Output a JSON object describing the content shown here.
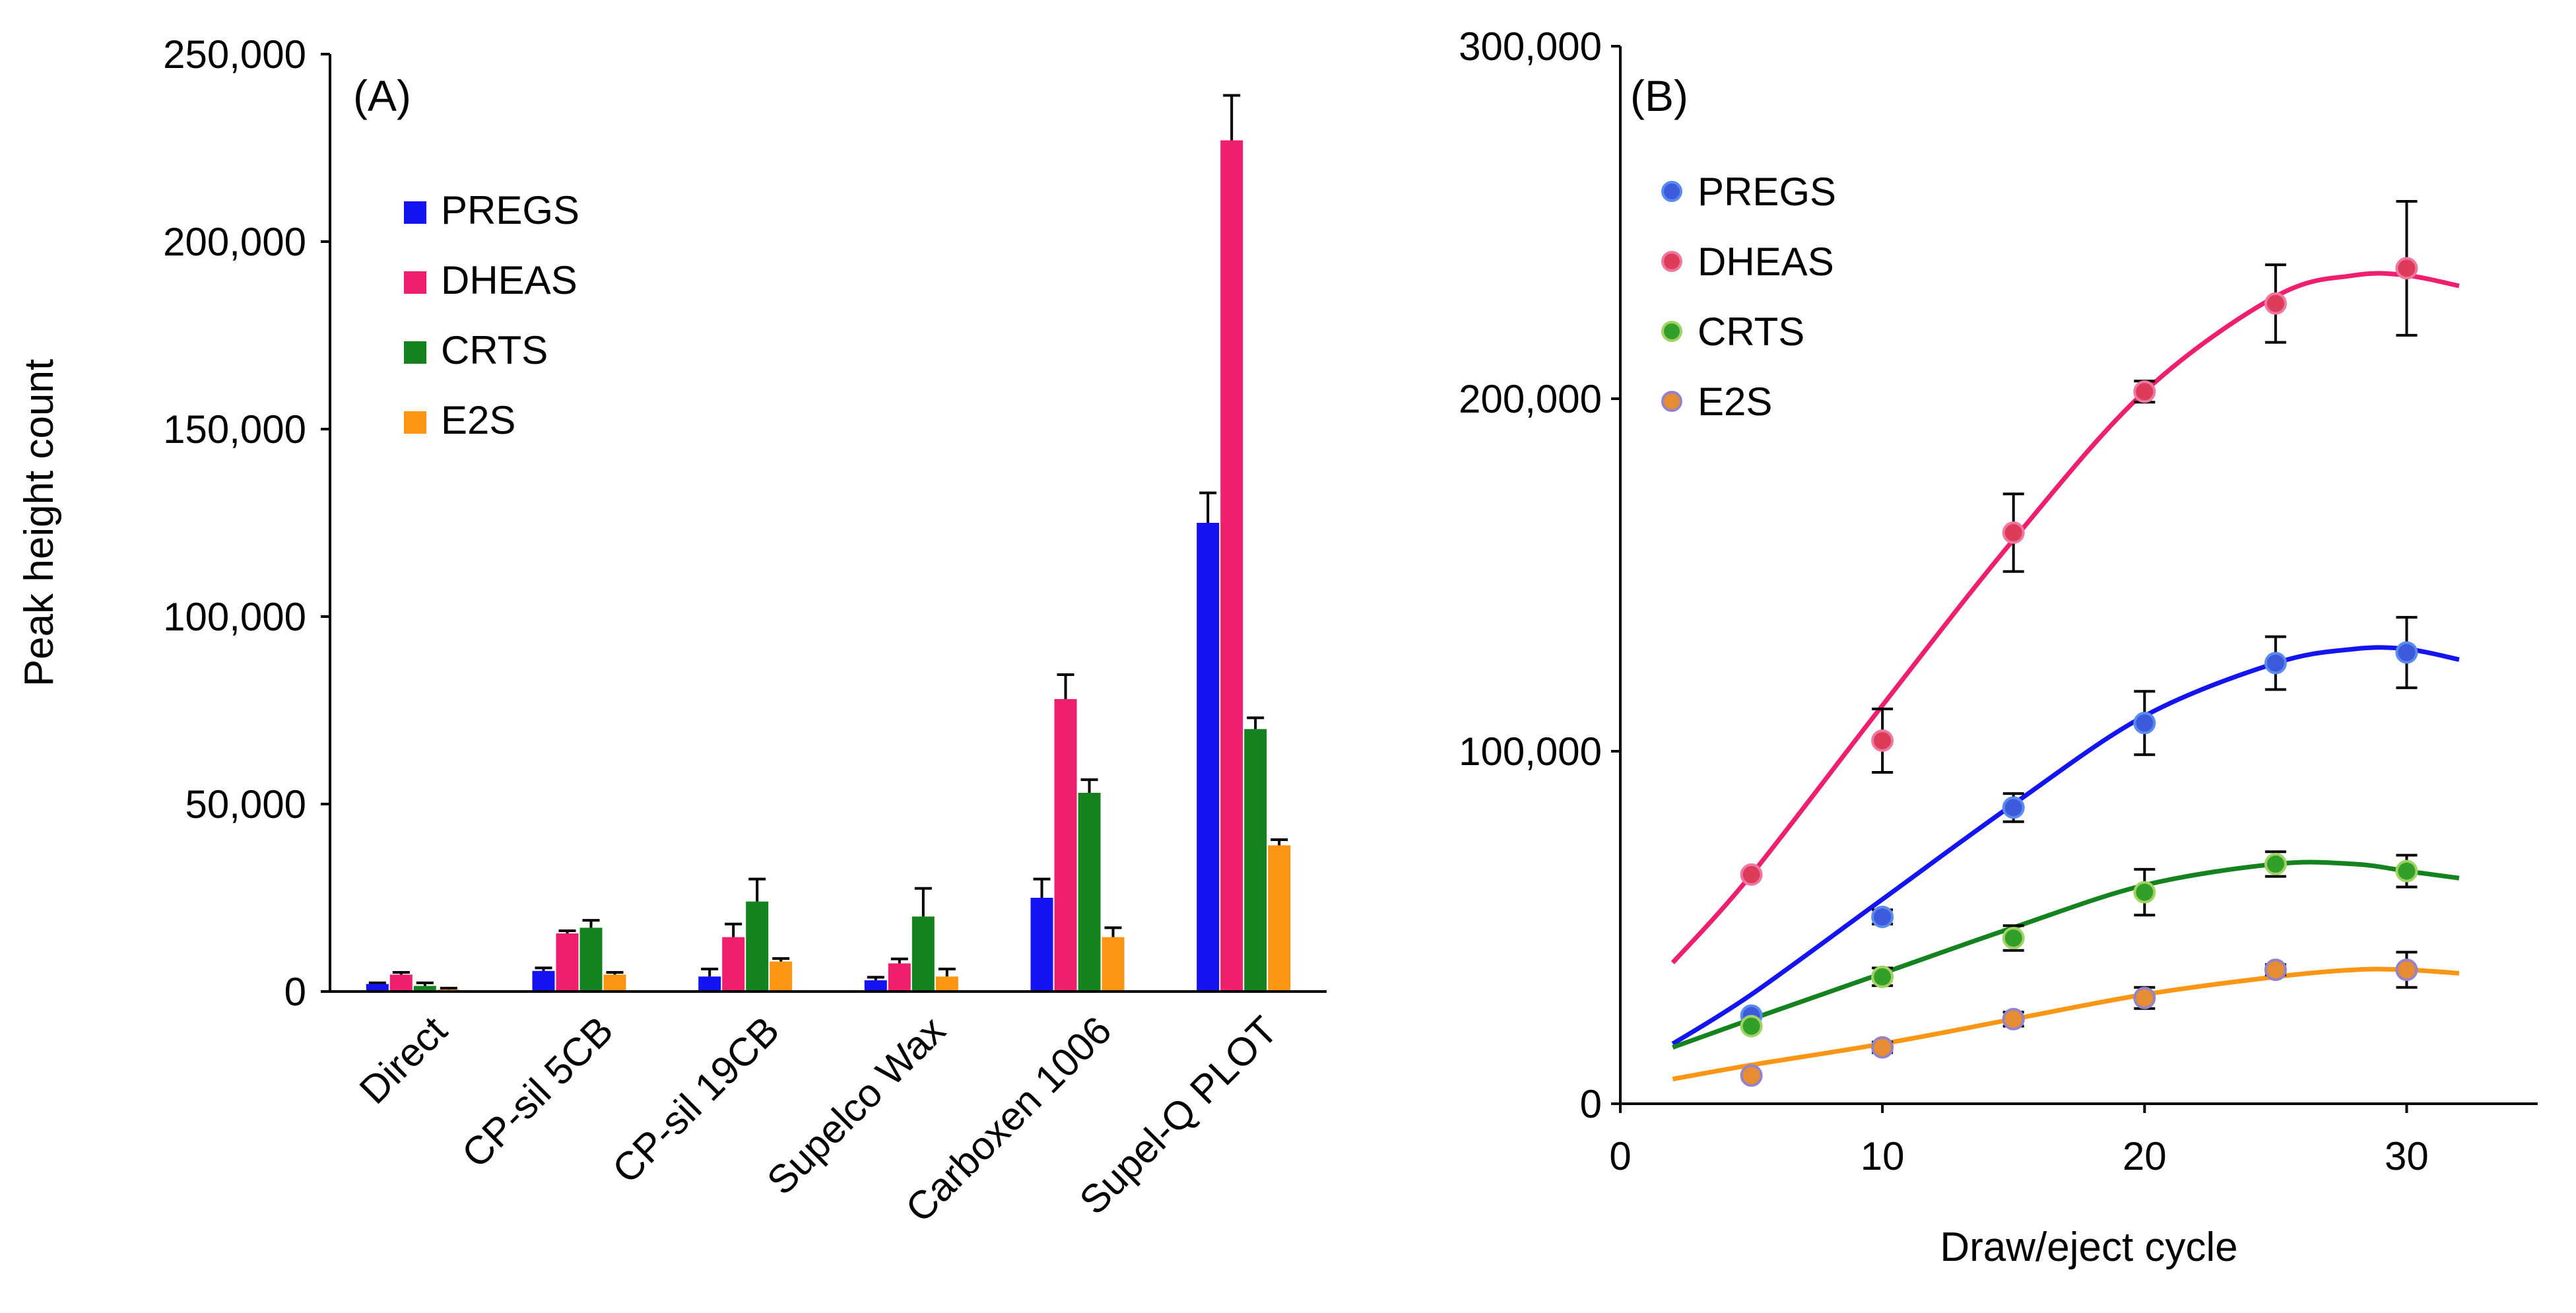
{
  "chart_data": [
    {
      "panel": "A",
      "type": "bar",
      "panel_label": "(A)",
      "title": "",
      "xlabel": "",
      "ylabel": "Peak height count",
      "ylim": [
        0,
        250000
      ],
      "yticks": [
        0,
        50000,
        100000,
        150000,
        200000,
        250000
      ],
      "ytick_labels": [
        "0",
        "50,000",
        "100,000",
        "150,000",
        "200,000",
        "250,000"
      ],
      "categories": [
        "Direct",
        "CP-sil 5CB",
        "CP-sil 19CB",
        "Supelco Wax",
        "Carboxen 1006",
        "Supel-Q PLOT"
      ],
      "legend_position": "top-left",
      "series": [
        {
          "name": "PREGS",
          "color": "#1414f0",
          "values": [
            2000,
            5500,
            4000,
            3000,
            25000,
            125000
          ],
          "errors": [
            300,
            800,
            2000,
            800,
            5000,
            8000
          ]
        },
        {
          "name": "DHEAS",
          "color": "#f01e6e",
          "values": [
            4500,
            15500,
            14500,
            7500,
            78000,
            227000
          ],
          "errors": [
            600,
            700,
            3500,
            1200,
            6500,
            12000
          ]
        },
        {
          "name": "CRTS",
          "color": "#14821e",
          "values": [
            1500,
            17000,
            24000,
            20000,
            53000,
            70000
          ],
          "errors": [
            800,
            2000,
            6000,
            7500,
            3500,
            3000
          ]
        },
        {
          "name": "E2S",
          "color": "#fa9614",
          "values": [
            500,
            4500,
            8000,
            4000,
            14500,
            39000
          ],
          "errors": [
            400,
            600,
            800,
            2000,
            2500,
            1500
          ]
        }
      ]
    },
    {
      "panel": "B",
      "type": "scatter",
      "panel_label": "(B)",
      "title": "",
      "xlabel": "Draw/eject cycle",
      "ylabel": "",
      "xlim": [
        0,
        35
      ],
      "ylim": [
        0,
        300000
      ],
      "xticks": [
        0,
        10,
        20,
        30
      ],
      "xtick_labels": [
        "0",
        "10",
        "20",
        "30"
      ],
      "yticks": [
        0,
        100000,
        200000,
        300000
      ],
      "ytick_labels": [
        "0",
        "100,000",
        "200,000",
        "300,000"
      ],
      "x": [
        5,
        10,
        15,
        20,
        25,
        30
      ],
      "legend_position": "top-left",
      "series": [
        {
          "name": "PREGS",
          "color": "#1414f0",
          "marker_fill": "#3c5adc",
          "marker_edge": "#5a8cf0",
          "values": [
            25000,
            53000,
            84000,
            108000,
            125000,
            128000
          ],
          "errors": [
            0,
            2000,
            4000,
            9000,
            7500,
            10000
          ],
          "fit_x": [
            2,
            5,
            10,
            15,
            20,
            25,
            28,
            30,
            32
          ],
          "fit_y": [
            17000,
            31000,
            58000,
            85000,
            110000,
            125000,
            129000,
            129000,
            126000
          ]
        },
        {
          "name": "DHEAS",
          "color": "#f01e6e",
          "marker_fill": "#dc3c5a",
          "marker_edge": "#f078a0",
          "values": [
            65000,
            103000,
            162000,
            202000,
            227000,
            237000
          ],
          "errors": [
            0,
            9000,
            11000,
            3000,
            11000,
            19000
          ],
          "fit_x": [
            2,
            5,
            10,
            15,
            20,
            25,
            28,
            30,
            32
          ],
          "fit_y": [
            40000,
            65000,
            113000,
            160000,
            202000,
            229000,
            235000,
            235000,
            232000
          ]
        },
        {
          "name": "CRTS",
          "color": "#14821e",
          "marker_fill": "#32a028",
          "marker_edge": "#a0d264",
          "values": [
            22000,
            36000,
            47000,
            60000,
            68000,
            66000
          ],
          "errors": [
            0,
            2500,
            3500,
            6500,
            3500,
            4500
          ],
          "fit_x": [
            2,
            5,
            10,
            15,
            20,
            25,
            28,
            30,
            32
          ],
          "fit_y": [
            16000,
            24000,
            37000,
            50000,
            62000,
            68000,
            68000,
            66000,
            64000
          ]
        },
        {
          "name": "E2S",
          "color": "#fa9614",
          "marker_fill": "#e68c32",
          "marker_edge": "#9682c8",
          "values": [
            8000,
            16000,
            24000,
            30000,
            38000,
            38000
          ],
          "errors": [
            0,
            1500,
            2000,
            3000,
            1500,
            5000
          ],
          "fit_x": [
            2,
            5,
            10,
            15,
            20,
            25,
            28,
            30,
            32
          ],
          "fit_y": [
            7000,
            11000,
            17000,
            24000,
            31000,
            36000,
            38000,
            38000,
            37000
          ]
        }
      ]
    }
  ]
}
